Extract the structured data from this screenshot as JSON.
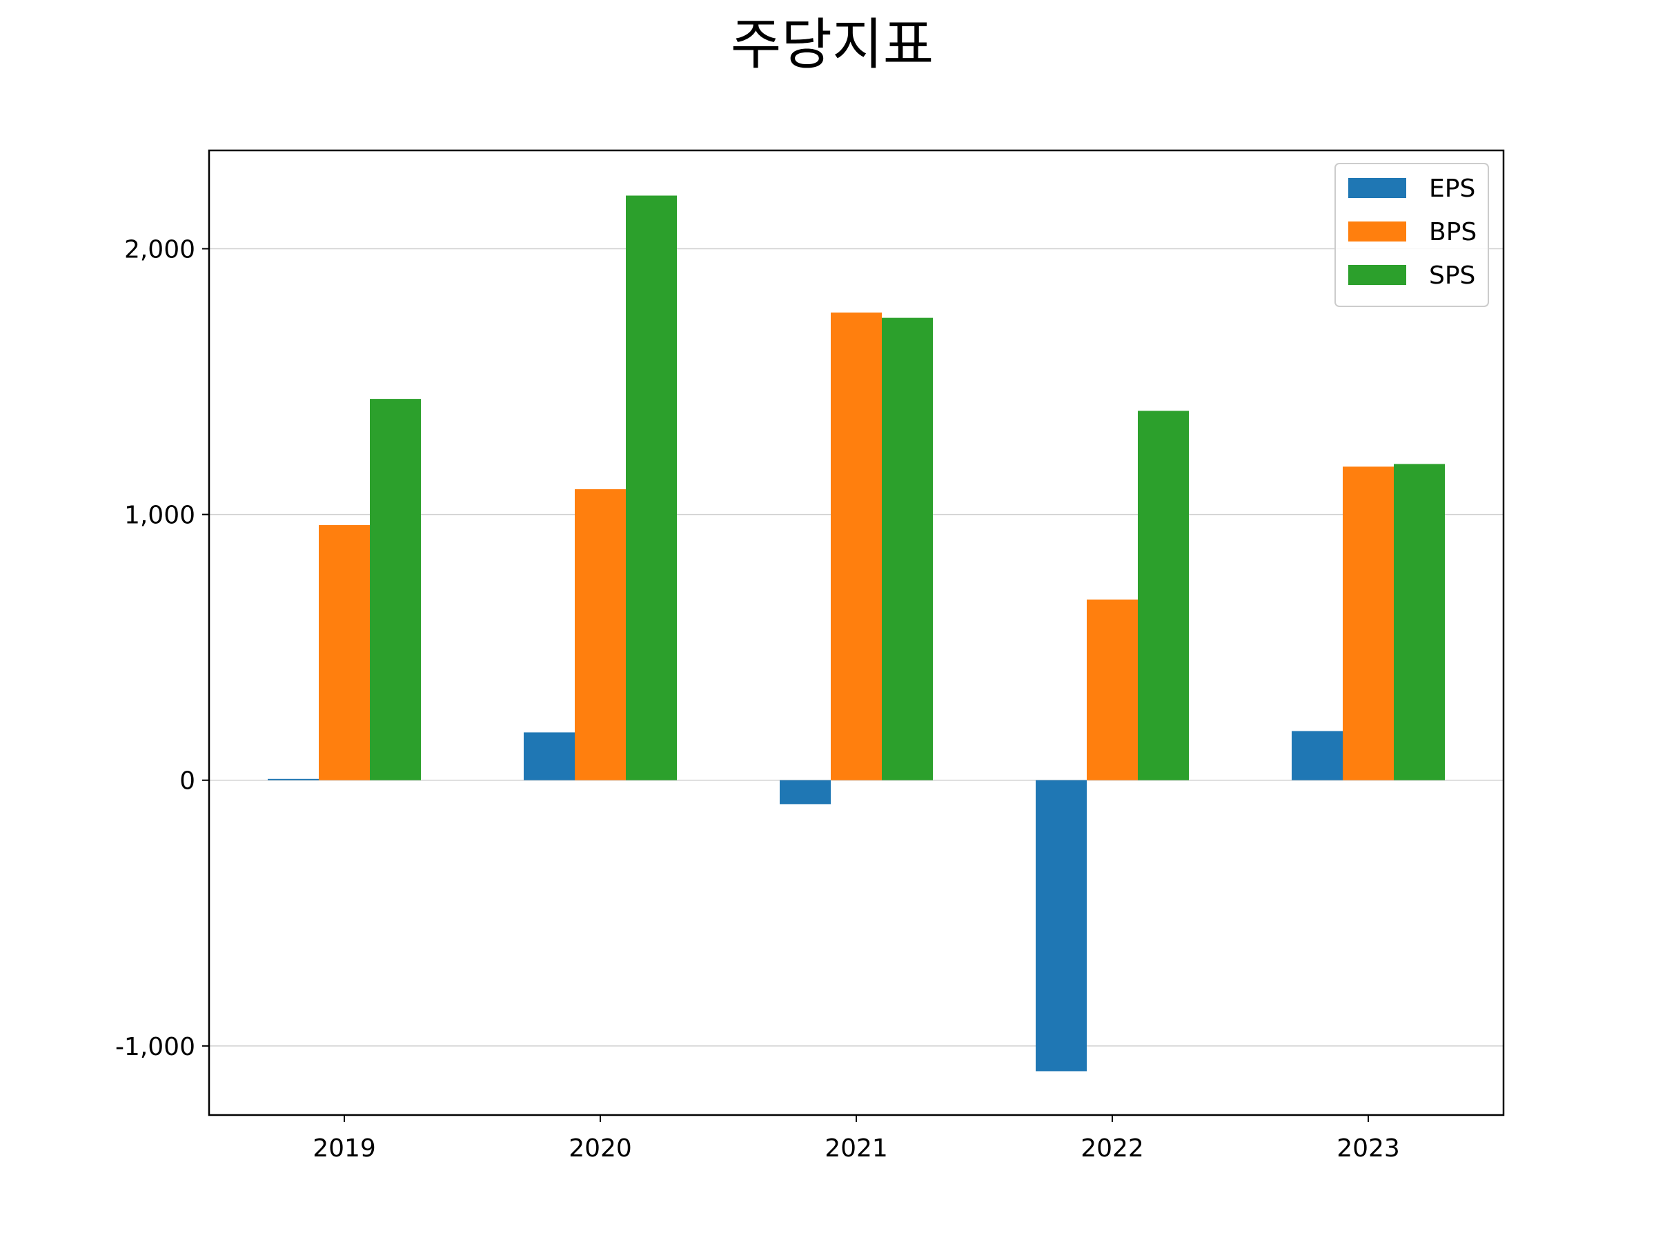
{
  "chart_data": {
    "type": "bar",
    "title": "주당지표",
    "xlabel": "",
    "ylabel": "",
    "categories": [
      "2019",
      "2020",
      "2021",
      "2022",
      "2023"
    ],
    "series": [
      {
        "name": "EPS",
        "color": "#1f77b4",
        "values": [
          5,
          180,
          -90,
          -1095,
          185
        ]
      },
      {
        "name": "BPS",
        "color": "#ff7f0e",
        "values": [
          960,
          1095,
          1760,
          680,
          1180
        ]
      },
      {
        "name": "SPS",
        "color": "#2ca02c",
        "values": [
          1435,
          2200,
          1740,
          1390,
          1190
        ]
      }
    ],
    "ylim": [
      -1260,
      2370
    ],
    "yticks": [
      -1000,
      0,
      1000,
      2000
    ],
    "ytick_labels": [
      "-1,000",
      "0",
      "1,000",
      "2,000"
    ],
    "grid": true,
    "legend_position": "top-right"
  }
}
